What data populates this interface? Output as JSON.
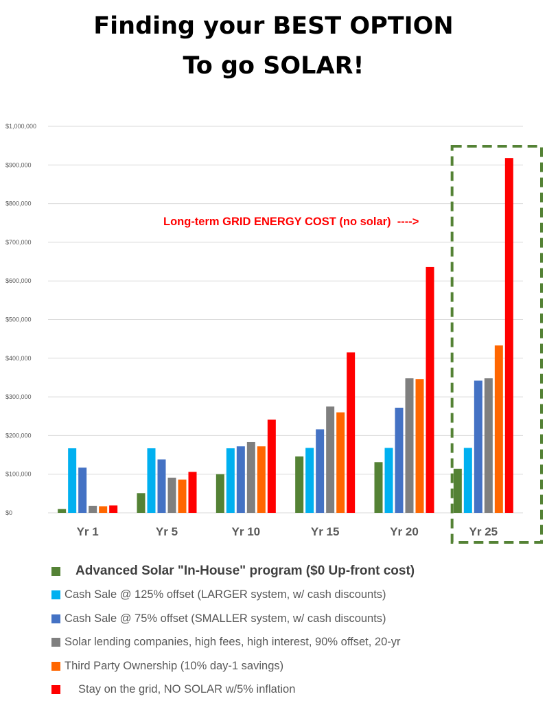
{
  "title_lines": [
    "Finding your BEST OPTION",
    "To go SOLAR!"
  ],
  "chart_data": {
    "type": "bar",
    "title": "Finding your BEST OPTION To go SOLAR!",
    "categories": [
      "Yr 1",
      "Yr 5",
      "Yr 10",
      "Yr 15",
      "Yr 20",
      "Yr 25"
    ],
    "ylim": [
      0,
      1000000
    ],
    "yticks": [
      0,
      100000,
      200000,
      300000,
      400000,
      500000,
      600000,
      700000,
      800000,
      900000,
      1000000
    ],
    "ytick_labels": [
      "$0",
      "$100,000",
      "$200,000",
      "$300,000",
      "$400,000",
      "$500,000",
      "$600,000",
      "$700,000",
      "$800,000",
      "$900,000",
      "$1,000,000"
    ],
    "grid": true,
    "legend_position": "bottom",
    "series": [
      {
        "name": "Advanced Solar \"In-House\" program ($0 Up-front cost)",
        "color": "#548235",
        "values": [
          10000,
          51000,
          100000,
          146000,
          131000,
          114000
        ]
      },
      {
        "name": "Cash Sale @ 125% offset (LARGER system, w/ cash discounts)",
        "color": "#00b0f0",
        "values": [
          167000,
          167000,
          167000,
          168000,
          168000,
          168000
        ]
      },
      {
        "name": "Cash Sale @ 75% offset (SMALLER system, w/ cash discounts)",
        "color": "#4472c4",
        "values": [
          117000,
          138000,
          172000,
          216000,
          272000,
          342000
        ]
      },
      {
        "name": "Solar lending companies, high fees, high interest, 90% offset, 20-yr",
        "color": "#7f7f7f",
        "values": [
          18000,
          91000,
          183000,
          275000,
          348000,
          348000
        ]
      },
      {
        "name": "Third Party Ownership (10% day-1 savings)",
        "color": "#ff6600",
        "values": [
          17000,
          86000,
          172000,
          260000,
          346000,
          433000
        ]
      },
      {
        "name": "Stay on the grid, NO SOLAR w/5% inflation",
        "color": "#ff0000",
        "values": [
          19000,
          106000,
          241000,
          415000,
          636000,
          918000
        ]
      }
    ],
    "annotation": "Long-term GRID ENERGY COST (no solar)  ---->",
    "highlight_category": "Yr 25",
    "highlight_color": "#548235"
  }
}
